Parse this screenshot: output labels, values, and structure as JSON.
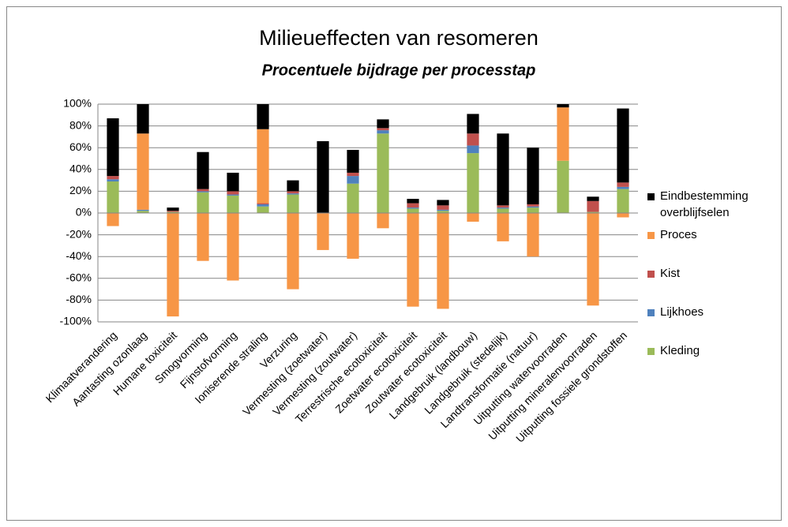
{
  "chart_data": {
    "type": "stacked_bar",
    "title": "Milieueffecten van resomeren",
    "subtitle": "Procentuele bijdrage per processtap",
    "categories": [
      "Klimaatverandering",
      "Aantasting ozonlaag",
      "Humane toxiciteit",
      "Smogvorming",
      "Fijnstofvorming",
      "Ioniserende straling",
      "Verzuring",
      "Vermesting (zoetwater)",
      "Vermesting (zoutwater)",
      "Terrestrische ecotoxiciteit",
      "Zoetwater ecotoxiciteit",
      "Zoutwater ecotoxiciteit",
      "Landgebruik (landbouw)",
      "Landgebruik (stedelijk)",
      "Landtransformatie (natuur)",
      "Uitputting watervoorraden",
      "Uitputting mineralenvoorraden",
      "Uitputting fossiele grondstoffen"
    ],
    "series": [
      {
        "name": "Kleding",
        "color": "#9bbb59",
        "values": [
          29,
          2,
          1,
          19,
          16,
          6,
          17,
          0,
          27,
          73,
          4,
          2,
          55,
          4,
          5,
          48,
          1,
          22
        ]
      },
      {
        "name": "Lijkhoes",
        "color": "#4f81bd",
        "values": [
          2,
          1,
          0,
          1,
          1,
          2,
          1,
          0,
          7,
          3,
          1,
          1,
          7,
          1,
          1,
          0,
          0,
          2
        ]
      },
      {
        "name": "Kist",
        "color": "#c0504d",
        "values": [
          3,
          0,
          1,
          2,
          3,
          1,
          2,
          0,
          3,
          2,
          4,
          4,
          11,
          2,
          2,
          0,
          10,
          4
        ]
      },
      {
        "name": "Proces",
        "color": "#f79646",
        "values": [
          -12,
          70,
          -95,
          -44,
          -62,
          68,
          -70,
          -34,
          -42,
          -14,
          -86,
          -88,
          -8,
          -26,
          -40,
          49,
          -85,
          -4
        ]
      },
      {
        "name": "Eindbestemming overblijfselen",
        "color": "#000000",
        "values": [
          53,
          27,
          3,
          34,
          17,
          23,
          10,
          66,
          21,
          8,
          4,
          5,
          18,
          66,
          52,
          3,
          4,
          68
        ]
      }
    ],
    "ylim": [
      -100,
      100
    ],
    "yticks": [
      {
        "value": -100,
        "label": "-100%"
      },
      {
        "value": -80,
        "label": "-80%"
      },
      {
        "value": -60,
        "label": "-60%"
      },
      {
        "value": -40,
        "label": "-40%"
      },
      {
        "value": -20,
        "label": "-20%"
      },
      {
        "value": 0,
        "label": "0%"
      },
      {
        "value": 20,
        "label": "20%"
      },
      {
        "value": 40,
        "label": "40%"
      },
      {
        "value": 60,
        "label": "60%"
      },
      {
        "value": 80,
        "label": "80%"
      },
      {
        "value": 100,
        "label": "100%"
      }
    ],
    "grid": true,
    "legend": "right"
  }
}
